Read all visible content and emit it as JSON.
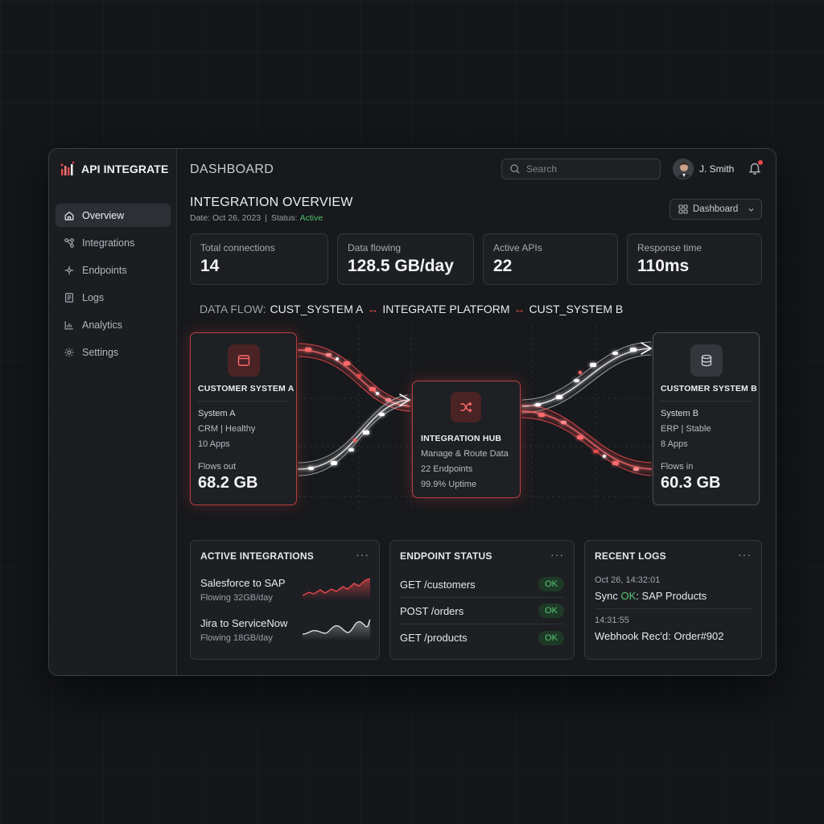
{
  "app": {
    "name": "API INTEGRATE"
  },
  "sidebar": {
    "items": [
      {
        "label": "Overview",
        "icon": "home-icon",
        "active": true
      },
      {
        "label": "Integrations",
        "icon": "integrations-icon"
      },
      {
        "label": "Endpoints",
        "icon": "endpoints-icon"
      },
      {
        "label": "Logs",
        "icon": "logs-icon"
      },
      {
        "label": "Analytics",
        "icon": "analytics-icon"
      },
      {
        "label": "Settings",
        "icon": "gear-icon"
      }
    ]
  },
  "header": {
    "title": "DASHBOARD",
    "search_placeholder": "Search",
    "user_name": "J. Smith"
  },
  "overview": {
    "title": "INTEGRATION OVERVIEW",
    "date_text": "Date: Oct 26, 2023",
    "separator": "|",
    "status_label": "Status:",
    "status_value": "Active",
    "view_select": "Dashboard"
  },
  "stats": [
    {
      "label": "Total connections",
      "value": "14"
    },
    {
      "label": "Data flowing",
      "value": "128.5 GB/day"
    },
    {
      "label": "Active APIs",
      "value": "22"
    },
    {
      "label": "Response time",
      "value": "110ms"
    }
  ],
  "flow": {
    "prefix": "DATA FLOW:",
    "system_a": "CUST_SYSTEM A",
    "platform": "INTEGRATE PLATFORM",
    "system_b": "CUST_SYSTEM B",
    "arrow": "↔",
    "card_a": {
      "title": "CUSTOMER SYSTEM A",
      "line1": "System A",
      "line2": "CRM | Healthy",
      "line3": "10 Apps",
      "flow_label": "Flows out",
      "flow_value": "68.2 GB"
    },
    "hub": {
      "title": "INTEGRATION HUB",
      "line1": "Manage & Route Data",
      "line2": "22 Endpoints",
      "line3": "99.9% Uptime"
    },
    "card_b": {
      "title": "CUSTOMER SYSTEM B",
      "line1": "System B",
      "line2": "ERP | Stable",
      "line3": "8 Apps",
      "flow_label": "Flows in",
      "flow_value": "60.3 GB"
    }
  },
  "active_integrations": {
    "title": "ACTIVE INTEGRATIONS",
    "more": "···",
    "items": [
      {
        "name": "Salesforce to SAP",
        "sub": "Flowing 32GB/day"
      },
      {
        "name": "Jira to ServiceNow",
        "sub": "Flowing 18GB/day"
      }
    ]
  },
  "endpoint_status": {
    "title": "ENDPOINT STATUS",
    "more": "···",
    "items": [
      {
        "endpoint": "GET /customers",
        "status": "OK"
      },
      {
        "endpoint": "POST /orders",
        "status": "OK"
      },
      {
        "endpoint": "GET /products",
        "status": "OK"
      }
    ]
  },
  "recent_logs": {
    "title": "RECENT LOGS",
    "more": "···",
    "items": [
      {
        "time": "Oct 26, 14:32:01",
        "prefix": "Sync ",
        "status": "OK",
        "suffix": ": SAP Products"
      },
      {
        "time": "14:31:55",
        "prefix": "Webhook Rec'd: Order#902",
        "status": "",
        "suffix": ""
      }
    ]
  },
  "colors": {
    "accent": "#e5484d",
    "ok": "#59c777",
    "background": "#141619"
  }
}
